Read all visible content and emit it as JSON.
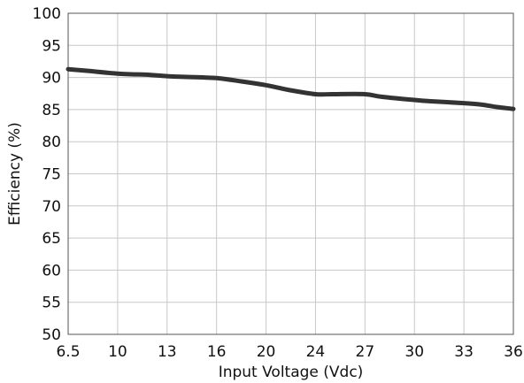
{
  "chart_data": {
    "type": "line",
    "title": "",
    "xlabel": "Input Voltage (Vdc)",
    "ylabel": "Efficiency (%)",
    "x_ticks": [
      "6.5",
      "10",
      "13",
      "16",
      "20",
      "24",
      "27",
      "30",
      "33",
      "36"
    ],
    "y_ticks": [
      "50",
      "55",
      "60",
      "65",
      "70",
      "75",
      "80",
      "85",
      "90",
      "95",
      "100"
    ],
    "ylim": [
      50,
      100
    ],
    "grid": true,
    "line_color": "#333333",
    "series": [
      {
        "x": [
          "6.5",
          "8",
          "10",
          "12",
          "13",
          "14",
          "16",
          "18",
          "20",
          "21",
          "22",
          "24",
          "25",
          "27",
          "28",
          "30",
          "31",
          "33",
          "34",
          "35",
          "36"
        ],
        "values": [
          91.3,
          91.0,
          90.6,
          90.4,
          90.2,
          90.1,
          89.9,
          89.4,
          88.8,
          88.4,
          88.0,
          87.4,
          87.4,
          87.4,
          87.0,
          86.5,
          86.3,
          86.0,
          85.8,
          85.4,
          85.1
        ]
      }
    ]
  }
}
